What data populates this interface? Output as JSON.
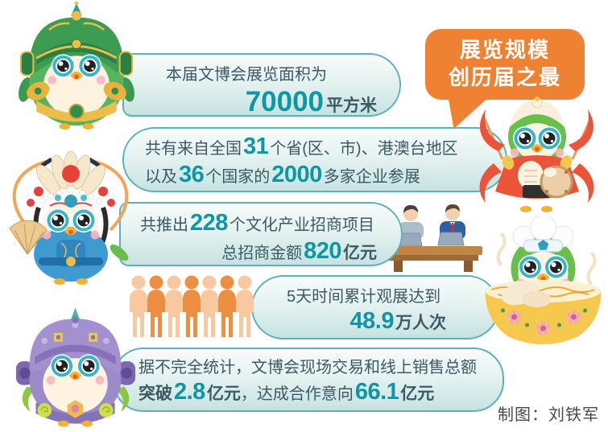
{
  "meta": {
    "credit_label": "制图：刘铁军"
  },
  "badge": {
    "lines": [
      "展览规模",
      "创历届之最"
    ]
  },
  "banners": [
    {
      "name": "exhibition-area",
      "lines": [
        {
          "align": "left",
          "indent": 52,
          "segments": [
            {
              "text": "本届文博会展览面积为",
              "style": "text"
            }
          ]
        },
        {
          "align": "right",
          "indent": 28,
          "segments": [
            {
              "text": "70000",
              "style": "num-lg"
            },
            {
              "text": "平方米",
              "style": "unit"
            }
          ]
        }
      ]
    },
    {
      "name": "participants",
      "lines": [
        {
          "align": "left",
          "indent": 26,
          "segments": [
            {
              "text": "共有来自全国",
              "style": "text"
            },
            {
              "text": "31",
              "style": "num"
            },
            {
              "text": "个省(区、市)、港澳台地区",
              "style": "text"
            }
          ]
        },
        {
          "align": "left",
          "indent": 26,
          "segments": [
            {
              "text": "以及",
              "style": "text"
            },
            {
              "text": "36",
              "style": "num"
            },
            {
              "text": "个国家的",
              "style": "text"
            },
            {
              "text": "2000",
              "style": "num"
            },
            {
              "text": "多家企业参展",
              "style": "text"
            }
          ]
        }
      ]
    },
    {
      "name": "investment-projects",
      "lines": [
        {
          "align": "left",
          "indent": 24,
          "segments": [
            {
              "text": "共推出",
              "style": "text"
            },
            {
              "text": "228",
              "style": "num"
            },
            {
              "text": "个文化产业招商项目",
              "style": "text"
            }
          ]
        },
        {
          "align": "right",
          "indent": 30,
          "segments": [
            {
              "text": "总招商金额",
              "style": "text"
            },
            {
              "text": "820",
              "style": "num"
            },
            {
              "text": "亿元",
              "style": "unit"
            }
          ]
        }
      ]
    },
    {
      "name": "visitors",
      "lines": [
        {
          "align": "left",
          "indent": 42,
          "segments": [
            {
              "text": "5天时间累计观展达到",
              "style": "text"
            }
          ]
        },
        {
          "align": "right",
          "indent": 64,
          "segments": [
            {
              "text": "48.9",
              "style": "num"
            },
            {
              "text": "万人次",
              "style": "unit"
            }
          ]
        }
      ]
    },
    {
      "name": "sales",
      "lines": [
        {
          "align": "left",
          "indent": 30,
          "segments": [
            {
              "text": "据不完全统计，文博会现场交易和线上销售总额",
              "style": "text"
            }
          ]
        },
        {
          "align": "left",
          "indent": 30,
          "segments": [
            {
              "text": "突破",
              "style": "unit"
            },
            {
              "text": "2.8",
              "style": "num"
            },
            {
              "text": "亿元",
              "style": "unit"
            },
            {
              "text": "，达成合作意向",
              "style": "text"
            },
            {
              "text": "66.1",
              "style": "num"
            },
            {
              "text": "亿元",
              "style": "unit"
            }
          ]
        }
      ]
    }
  ],
  "icons": [
    "warrior-owl-mascot",
    "opera-owl-mascot",
    "robot-owl-mascot",
    "drummer-owl-mascot",
    "chef-owl-in-bowl-mascot",
    "negotiation-desk-icon",
    "visitor-crowd-icon",
    "speech-bubble-badge"
  ],
  "colors": {
    "banner_border": "#5fb0bd",
    "banner_fill_top": "#f7fcfa",
    "banner_fill_bottom": "#c6e3e1",
    "text_dark": "#3b5a64",
    "stat_teal": "#0d96a4",
    "badge_orange": "#ef8133",
    "crowd_orange_dark": "#ee8e42",
    "crowd_orange_light": "#f8c9a0"
  }
}
